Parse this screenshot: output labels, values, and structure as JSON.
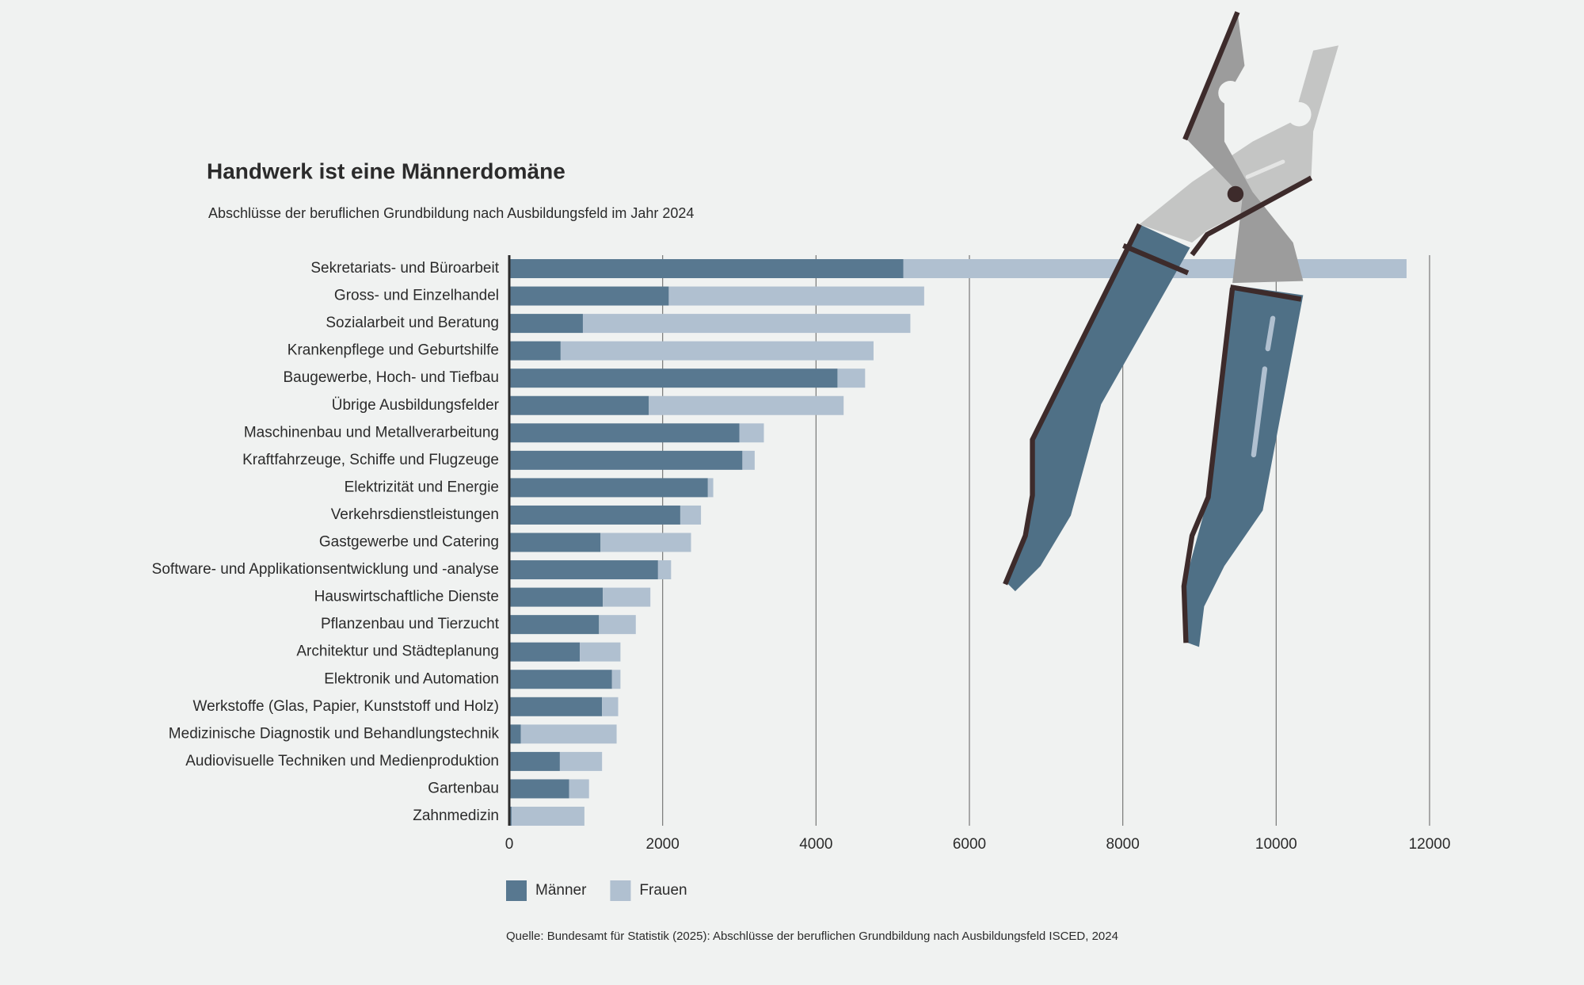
{
  "chart_data": {
    "type": "bar",
    "orientation": "horizontal",
    "stacked": true,
    "title": "Handwerk ist eine Männerdomäne",
    "subtitle": "Abschlüsse der beruflichen Grundbildung nach Ausbildungsfeld im Jahr 2024",
    "source": "Quelle: Bundesamt für Statistik (2025): Abschlüsse der beruflichen Grundbildung nach Ausbildungsfeld ISCED, 2024",
    "categories": [
      "Sekretariats- und Büroarbeit",
      "Gross- und Einzelhandel",
      "Sozialarbeit und Beratung",
      "Krankenpflege und Geburtshilfe",
      "Baugewerbe, Hoch- und Tiefbau",
      "Übrige Ausbildungsfelder",
      "Maschinenbau und Metallverarbeitung",
      "Kraftfahrzeuge, Schiffe und Flugzeuge",
      "Elektrizität und Energie",
      "Verkehrsdienstleistungen",
      "Gastgewerbe und Catering",
      "Software- und Applikationsentwicklung und -analyse",
      "Hauswirtschaftliche Dienste",
      "Pflanzenbau und Tierzucht",
      "Architektur und Städteplanung",
      "Elektronik und Automation",
      "Werkstoffe (Glas, Papier, Kunststoff und Holz)",
      "Medizinische Diagnostik und Behandlungstechnik",
      "Audiovisuelle Techniken und Medienproduktion",
      "Gartenbau",
      "Zahnmedizin"
    ],
    "series": [
      {
        "name": "Männer",
        "color": "#587890",
        "values": [
          5140,
          2080,
          960,
          670,
          4280,
          1820,
          3000,
          3040,
          2590,
          2230,
          1190,
          1940,
          1220,
          1170,
          920,
          1340,
          1210,
          150,
          660,
          780,
          30
        ]
      },
      {
        "name": "Frauen",
        "color": "#b0c0d0",
        "values": [
          6560,
          3330,
          4270,
          4080,
          360,
          2540,
          320,
          160,
          70,
          270,
          1180,
          170,
          620,
          480,
          530,
          110,
          210,
          1250,
          550,
          260,
          950
        ]
      }
    ],
    "xlim": [
      0,
      12000
    ],
    "xticks": [
      0,
      2000,
      4000,
      6000,
      8000,
      10000,
      12000
    ],
    "grid": true
  }
}
